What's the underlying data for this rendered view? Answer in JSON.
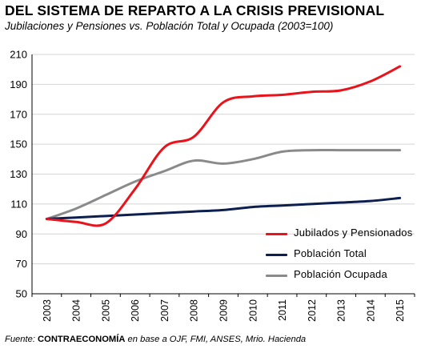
{
  "header": {
    "title": "DEL SISTEMA DE REPARTO A LA CRISIS PREVISIONAL",
    "subtitle": "Jubilaciones y Pensiones vs. Población Total y Ocupada (2003=100)"
  },
  "footer": {
    "prefix": "Fuente: ",
    "brand": "CONTRAECONOMÍA",
    "suffix": " en base a OJF, FMI, ANSES, Mrio. Hacienda"
  },
  "chart_data": {
    "type": "line",
    "title": "DEL SISTEMA DE REPARTO A LA CRISIS PREVISIONAL",
    "subtitle": "Jubilaciones y Pensiones vs. Población Total y Ocupada (2003=100)",
    "x": [
      "2003",
      "2004",
      "2005",
      "2006",
      "2007",
      "2008",
      "2009",
      "2010",
      "2011",
      "2012",
      "2013",
      "2014",
      "2015"
    ],
    "ylim": [
      50,
      210
    ],
    "yticks": [
      50,
      70,
      90,
      110,
      130,
      150,
      170,
      190,
      210
    ],
    "grid": "horizontal",
    "legend_position": "bottom-right",
    "series": [
      {
        "name": "Jubilados y Pensionados",
        "color": "#e8131b",
        "values": [
          100,
          98,
          97,
          120,
          148,
          155,
          178,
          182,
          183,
          185,
          186,
          192,
          202
        ]
      },
      {
        "name": "Población Total",
        "color": "#0d1f4f",
        "values": [
          100,
          101,
          102,
          103,
          104,
          105,
          106,
          108,
          109,
          110,
          111,
          112,
          114
        ]
      },
      {
        "name": "Población Ocupada",
        "color": "#8a8a8a",
        "values": [
          100,
          107,
          116,
          125,
          132,
          139,
          137,
          140,
          145,
          146,
          146,
          146,
          146
        ]
      }
    ]
  }
}
